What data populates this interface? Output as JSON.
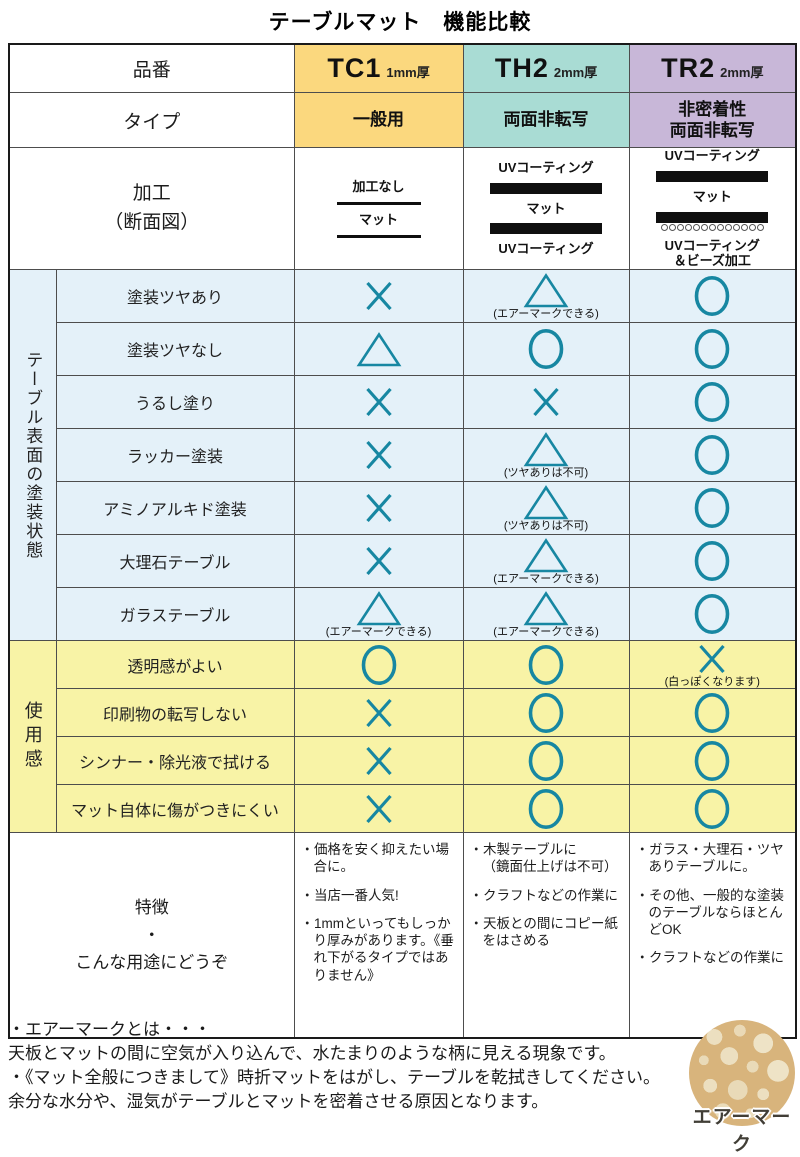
{
  "title": "テーブルマット　機能比較",
  "colors": {
    "tc1": "#fbd87e",
    "th2": "#a9dcd4",
    "tr2": "#c8b7d8",
    "surface_bg": "#e4f1f9",
    "usability_bg": "#f8f3a6",
    "symbol": "#1787a2"
  },
  "header": {
    "part_label": "品番",
    "type_label": "タイプ",
    "products": [
      {
        "code": "TC1",
        "thickness": "1mm厚",
        "type": "一般用"
      },
      {
        "code": "TH2",
        "thickness": "2mm厚",
        "type": "両面非転写"
      },
      {
        "code": "TR2",
        "thickness": "2mm厚",
        "type": "非密着性\n両面非転写"
      }
    ]
  },
  "processing": {
    "label": "加工\n（断面図）",
    "cells": [
      [
        {
          "t": "label",
          "v": "加工なし"
        },
        {
          "t": "thin"
        },
        {
          "t": "label",
          "v": "マット"
        },
        {
          "t": "thin"
        }
      ],
      [
        {
          "t": "label",
          "v": "UVコーティング"
        },
        {
          "t": "thick"
        },
        {
          "t": "label",
          "v": "マット"
        },
        {
          "t": "thick"
        },
        {
          "t": "label",
          "v": "UVコーティング"
        }
      ],
      [
        {
          "t": "label",
          "v": "UVコーティング"
        },
        {
          "t": "thick"
        },
        {
          "t": "label",
          "v": "マット"
        },
        {
          "t": "thick"
        },
        {
          "t": "beads"
        },
        {
          "t": "label",
          "v": "UVコーティング\n＆ビーズ加工"
        }
      ]
    ]
  },
  "sections": [
    {
      "id": "surface",
      "side_label": "テーブル表面の塗装状態",
      "rows": [
        {
          "label": "塗装ツヤあり",
          "cells": [
            {
              "s": "x"
            },
            {
              "s": "tri",
              "note": "(エアーマークできる)"
            },
            {
              "s": "o"
            }
          ]
        },
        {
          "label": "塗装ツヤなし",
          "cells": [
            {
              "s": "tri"
            },
            {
              "s": "o"
            },
            {
              "s": "o"
            }
          ]
        },
        {
          "label": "うるし塗り",
          "cells": [
            {
              "s": "x"
            },
            {
              "s": "x"
            },
            {
              "s": "o"
            }
          ]
        },
        {
          "label": "ラッカー塗装",
          "cells": [
            {
              "s": "x"
            },
            {
              "s": "tri",
              "note": "(ツヤありは不可)"
            },
            {
              "s": "o"
            }
          ]
        },
        {
          "label": "アミノアルキド塗装",
          "cells": [
            {
              "s": "x"
            },
            {
              "s": "tri",
              "note": "(ツヤありは不可)"
            },
            {
              "s": "o"
            }
          ]
        },
        {
          "label": "大理石テーブル",
          "cells": [
            {
              "s": "x"
            },
            {
              "s": "tri",
              "note": "(エアーマークできる)"
            },
            {
              "s": "o"
            }
          ]
        },
        {
          "label": "ガラステーブル",
          "cells": [
            {
              "s": "tri",
              "note": "(エアーマークできる)"
            },
            {
              "s": "tri",
              "note": "(エアーマークできる)"
            },
            {
              "s": "o"
            }
          ]
        }
      ]
    },
    {
      "id": "usability",
      "side_label": "使用感",
      "rows": [
        {
          "label": "透明感がよい",
          "cells": [
            {
              "s": "o"
            },
            {
              "s": "o"
            },
            {
              "s": "x",
              "note": "(白っぽくなります)"
            }
          ]
        },
        {
          "label": "印刷物の転写しない",
          "cells": [
            {
              "s": "x"
            },
            {
              "s": "o"
            },
            {
              "s": "o"
            }
          ]
        },
        {
          "label": "シンナー・除光液で拭ける",
          "cells": [
            {
              "s": "x"
            },
            {
              "s": "o"
            },
            {
              "s": "o"
            }
          ]
        },
        {
          "label": "マット自体に傷がつきにくい",
          "cells": [
            {
              "s": "x"
            },
            {
              "s": "o"
            },
            {
              "s": "o"
            }
          ]
        }
      ]
    }
  ],
  "features": {
    "label": "特徴\n・\nこんな用途にどうぞ",
    "cells": [
      [
        "・価格を安く抑えたい場合に。",
        "・当店一番人気!",
        "・1mmといってもしっかり厚みがあります。《垂れ下がるタイプではありません》"
      ],
      [
        "・木製テーブルに\n（鏡面仕上げは不可）",
        "・クラフトなどの作業に",
        "・天板との間にコピー紙をはさめる"
      ],
      [
        "・ガラス・大理石・ツヤありテーブルに。",
        "・その他、一般的な塗装のテーブルならほとんどOK",
        "・クラフトなどの作業に"
      ]
    ]
  },
  "footer": {
    "text": "・エアーマークとは・・・\n天板とマットの間に空気が入り込んで、水たまりのような柄に見える現象です。\n・《マット全般につきまして》時折マットをはがし、テーブルを乾拭きしてください。余分な水分や、湿気がテーブルとマットを密着させる原因となります。",
    "image_label": "エアーマーク"
  }
}
